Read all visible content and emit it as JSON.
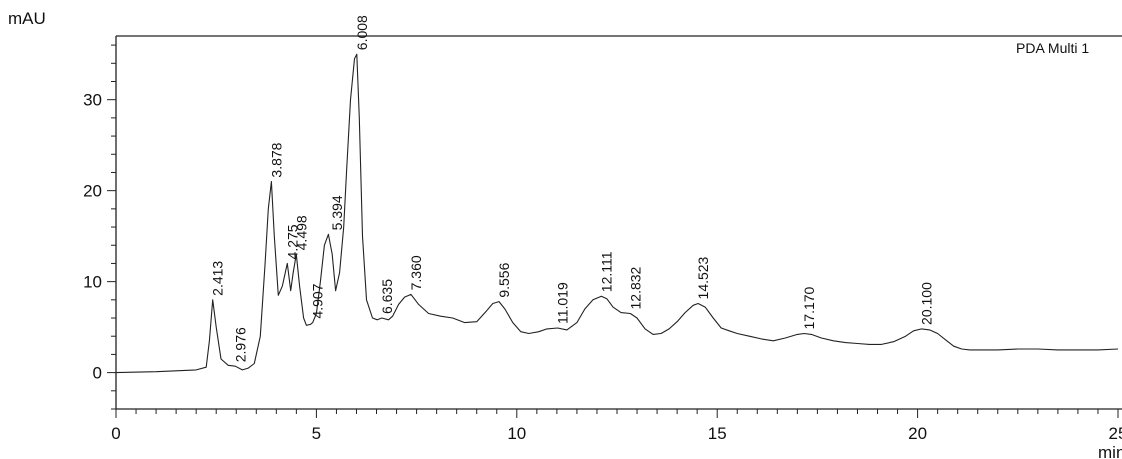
{
  "chart_data": {
    "type": "line",
    "title": "",
    "ylabel": "mAU",
    "xlabel": "min",
    "legend": "PDA Multi 1",
    "xlim": [
      0,
      25
    ],
    "ylim": [
      -4,
      37
    ],
    "x_ticks": [
      0,
      5,
      10,
      15,
      20,
      25
    ],
    "y_ticks": [
      0,
      10,
      20,
      30
    ],
    "x_tick_labels": [
      "0",
      "5",
      "10",
      "15",
      "20",
      "25"
    ],
    "y_tick_labels": [
      "0",
      "10",
      "20",
      "30"
    ],
    "grid": false,
    "line_color": "#222222",
    "series": [
      {
        "x": [
          0,
          1,
          2,
          2.25,
          2.33,
          2.413,
          2.5,
          2.62,
          2.8,
          2.976,
          3.15,
          3.3,
          3.45,
          3.6,
          3.72,
          3.8,
          3.878,
          3.95,
          4.05,
          4.15,
          4.275,
          4.36,
          4.42,
          4.498,
          4.58,
          4.68,
          4.75,
          4.85,
          4.907,
          5.0,
          5.1,
          5.2,
          5.3,
          5.394,
          5.48,
          5.58,
          5.68,
          5.75,
          5.85,
          5.95,
          6.008,
          6.07,
          6.15,
          6.25,
          6.4,
          6.52,
          6.635,
          6.8,
          6.9,
          7.05,
          7.2,
          7.36,
          7.55,
          7.8,
          8.1,
          8.4,
          8.7,
          9.0,
          9.25,
          9.4,
          9.556,
          9.7,
          9.9,
          10.1,
          10.3,
          10.55,
          10.75,
          11.019,
          11.25,
          11.5,
          11.7,
          11.9,
          12.111,
          12.25,
          12.4,
          12.6,
          12.832,
          13.0,
          13.2,
          13.4,
          13.6,
          13.8,
          14.0,
          14.2,
          14.4,
          14.523,
          14.7,
          14.9,
          15.1,
          15.3,
          15.5,
          15.8,
          16.1,
          16.4,
          16.7,
          17.0,
          17.17,
          17.35,
          17.6,
          17.9,
          18.2,
          18.5,
          18.8,
          19.1,
          19.4,
          19.7,
          19.9,
          20.1,
          20.3,
          20.5,
          20.7,
          20.9,
          21.1,
          21.3,
          21.6,
          22.0,
          22.5,
          23.0,
          23.5,
          24.0,
          24.5,
          25.0
        ],
        "y": [
          0,
          0.1,
          0.3,
          0.6,
          3.5,
          8.0,
          5.0,
          1.5,
          0.8,
          0.7,
          0.3,
          0.5,
          1.0,
          4.0,
          12.0,
          18.0,
          21.0,
          15.0,
          8.5,
          9.5,
          12.0,
          9.0,
          11.0,
          13.0,
          9.5,
          6.0,
          5.2,
          5.3,
          5.5,
          6.5,
          10.0,
          14.0,
          15.2,
          13.0,
          9.0,
          11.0,
          16.0,
          22.0,
          30.0,
          34.5,
          35.0,
          28.0,
          15.0,
          8.0,
          6.0,
          5.8,
          6.0,
          5.8,
          6.2,
          7.5,
          8.3,
          8.6,
          7.5,
          6.5,
          6.2,
          6.0,
          5.5,
          5.6,
          6.8,
          7.6,
          7.8,
          7.0,
          5.5,
          4.5,
          4.3,
          4.5,
          4.8,
          4.9,
          4.7,
          5.5,
          7.0,
          8.0,
          8.4,
          8.1,
          7.2,
          6.6,
          6.5,
          6.0,
          4.8,
          4.2,
          4.3,
          4.8,
          5.6,
          6.6,
          7.4,
          7.6,
          7.2,
          6.0,
          4.9,
          4.6,
          4.3,
          4.0,
          3.7,
          3.5,
          3.8,
          4.2,
          4.3,
          4.2,
          3.8,
          3.5,
          3.3,
          3.2,
          3.1,
          3.1,
          3.4,
          4.0,
          4.6,
          4.8,
          4.7,
          4.3,
          3.6,
          2.9,
          2.6,
          2.5,
          2.5,
          2.5,
          2.6,
          2.6,
          2.5,
          2.5,
          2.5,
          2.6
        ]
      }
    ],
    "peaks": [
      {
        "x": 2.413,
        "y": 8.0,
        "label": "2.413"
      },
      {
        "x": 2.976,
        "y": 0.7,
        "label": "2.976"
      },
      {
        "x": 3.878,
        "y": 21.0,
        "label": "3.878"
      },
      {
        "x": 4.275,
        "y": 12.0,
        "label": "4.275"
      },
      {
        "x": 4.498,
        "y": 13.0,
        "label": "4.498"
      },
      {
        "x": 4.907,
        "y": 5.5,
        "label": "4.907"
      },
      {
        "x": 5.394,
        "y": 15.2,
        "label": "5.394"
      },
      {
        "x": 6.008,
        "y": 35.0,
        "label": "6.008"
      },
      {
        "x": 6.635,
        "y": 6.0,
        "label": "6.635"
      },
      {
        "x": 7.36,
        "y": 8.6,
        "label": "7.360"
      },
      {
        "x": 9.556,
        "y": 7.8,
        "label": "9.556"
      },
      {
        "x": 11.019,
        "y": 4.9,
        "label": "11.019"
      },
      {
        "x": 12.111,
        "y": 8.4,
        "label": "12.111"
      },
      {
        "x": 12.832,
        "y": 6.5,
        "label": "12.832"
      },
      {
        "x": 14.523,
        "y": 7.6,
        "label": "14.523"
      },
      {
        "x": 17.17,
        "y": 4.3,
        "label": "17.170"
      },
      {
        "x": 20.1,
        "y": 4.8,
        "label": "20.100"
      }
    ]
  }
}
